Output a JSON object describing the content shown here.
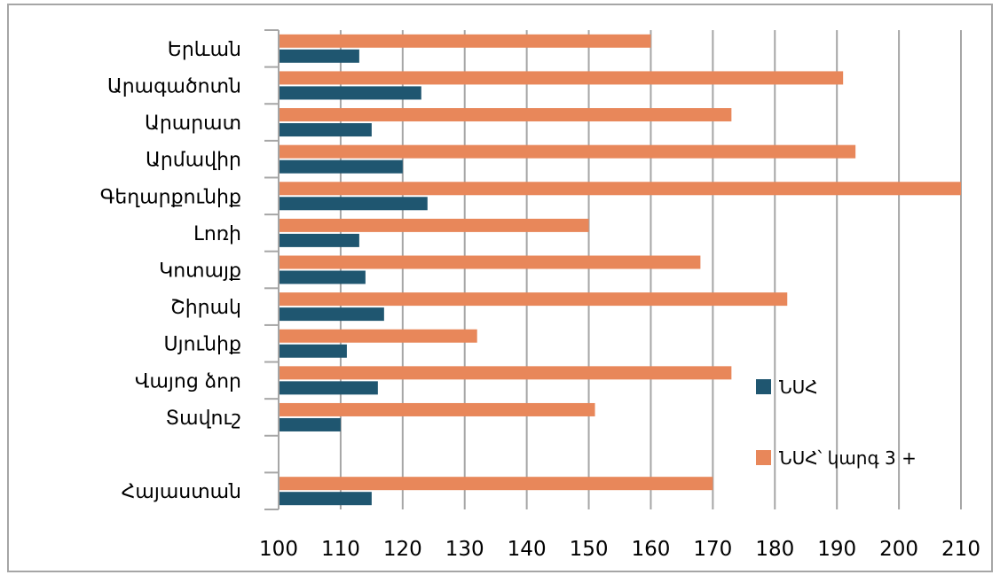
{
  "chart_data": {
    "type": "bar",
    "orientation": "horizontal",
    "categories": [
      "Երևան",
      "Արագածոտն",
      "Արարատ",
      "Արմավիր",
      "Գեղարքունիք",
      "Լոռի",
      "Կոտայք",
      "Շիրակ",
      "Սյունիք",
      "Վայոց ձոր",
      "Տավուշ",
      "",
      "Հայաստան"
    ],
    "series": [
      {
        "name": "ՆՍՀ",
        "color": "#1f5670",
        "values": [
          113,
          123,
          115,
          120,
          124,
          113,
          114,
          117,
          111,
          116,
          110,
          null,
          115
        ]
      },
      {
        "name": "ՆՍՀ՝ կարգ 3 +",
        "color": "#e8875a",
        "values": [
          160,
          191,
          173,
          193,
          210,
          150,
          168,
          182,
          132,
          173,
          151,
          null,
          170
        ]
      }
    ],
    "xlim": [
      100,
      210
    ],
    "x_ticks": [
      "100",
      "110",
      "120",
      "130",
      "140",
      "150",
      "160",
      "170",
      "180",
      "190",
      "200",
      "210"
    ],
    "grid": "vertical",
    "legend_position": "right"
  }
}
